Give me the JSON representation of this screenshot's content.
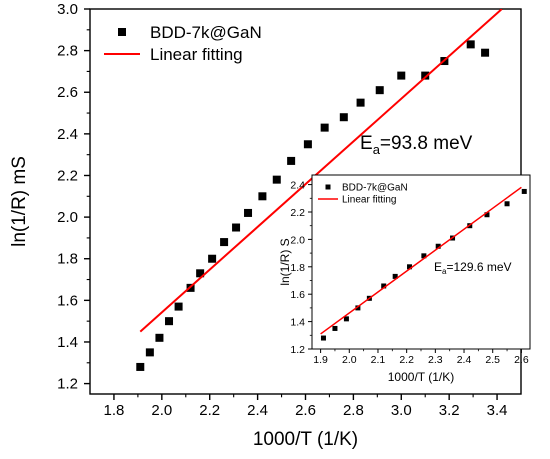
{
  "chart_data": [
    {
      "type": "scatter",
      "xlabel": "1000/T (1/K)",
      "ylabel": "ln(1/R) mS",
      "xlim": [
        1.7,
        3.5
      ],
      "ylim": [
        1.15,
        3.0
      ],
      "xticks": [
        "1.8",
        "2.0",
        "2.2",
        "2.4",
        "2.6",
        "2.8",
        "3.0",
        "3.2",
        "3.4"
      ],
      "yticks": [
        "1.2",
        "1.4",
        "1.6",
        "1.8",
        "2.0",
        "2.2",
        "2.4",
        "2.6",
        "2.8",
        "3.0"
      ],
      "legend": {
        "position": "top-left",
        "entries": [
          "BDD-7k@GaN",
          "Linear fitting"
        ]
      },
      "annotation": {
        "base": "E",
        "sub": "a",
        "rest": "=93.8 meV"
      },
      "series": [
        {
          "name": "BDD-7k@GaN",
          "kind": "scatter",
          "color": "#000000",
          "x": [
            1.91,
            1.95,
            1.99,
            2.03,
            2.07,
            2.12,
            2.16,
            2.21,
            2.26,
            2.31,
            2.36,
            2.42,
            2.48,
            2.54,
            2.61,
            2.68,
            2.76,
            2.83,
            2.91,
            3.0,
            3.1,
            3.18,
            3.29,
            3.35
          ],
          "y": [
            1.28,
            1.35,
            1.42,
            1.5,
            1.57,
            1.66,
            1.73,
            1.8,
            1.88,
            1.95,
            2.02,
            2.1,
            2.18,
            2.27,
            2.35,
            2.43,
            2.48,
            2.55,
            2.61,
            2.68,
            2.68,
            2.75,
            2.83,
            2.79
          ]
        },
        {
          "name": "Linear fitting",
          "kind": "line",
          "color": "#ff0000",
          "x": [
            1.91,
            3.42
          ],
          "y": [
            1.45,
            3.0
          ]
        }
      ]
    },
    {
      "type": "scatter",
      "xlabel": "1000/T (1/K)",
      "ylabel": "ln(1/R) S",
      "xlim": [
        1.87,
        2.63
      ],
      "ylim": [
        1.2,
        2.47
      ],
      "xticks": [
        "1.9",
        "2.0",
        "2.1",
        "2.2",
        "2.3",
        "2.4",
        "2.5",
        "2.6"
      ],
      "yticks": [
        "1.2",
        "1.4",
        "1.6",
        "1.8",
        "2.0",
        "2.2",
        "2.4"
      ],
      "legend": {
        "position": "top-left",
        "entries": [
          "BDD-7k@GaN",
          "Linear fitting"
        ]
      },
      "annotation": {
        "base": "E",
        "sub": "a",
        "rest": "=129.6 meV"
      },
      "series": [
        {
          "name": "BDD-7k@GaN",
          "kind": "scatter",
          "color": "#000000",
          "x": [
            1.91,
            1.95,
            1.99,
            2.03,
            2.07,
            2.12,
            2.16,
            2.21,
            2.26,
            2.31,
            2.36,
            2.42,
            2.48,
            2.55,
            2.61
          ],
          "y": [
            1.28,
            1.35,
            1.42,
            1.5,
            1.57,
            1.66,
            1.73,
            1.8,
            1.88,
            1.95,
            2.01,
            2.1,
            2.18,
            2.26,
            2.35
          ]
        },
        {
          "name": "Linear fitting",
          "kind": "line",
          "color": "#ff0000",
          "x": [
            1.9,
            2.6
          ],
          "y": [
            1.31,
            2.38
          ]
        }
      ]
    }
  ]
}
